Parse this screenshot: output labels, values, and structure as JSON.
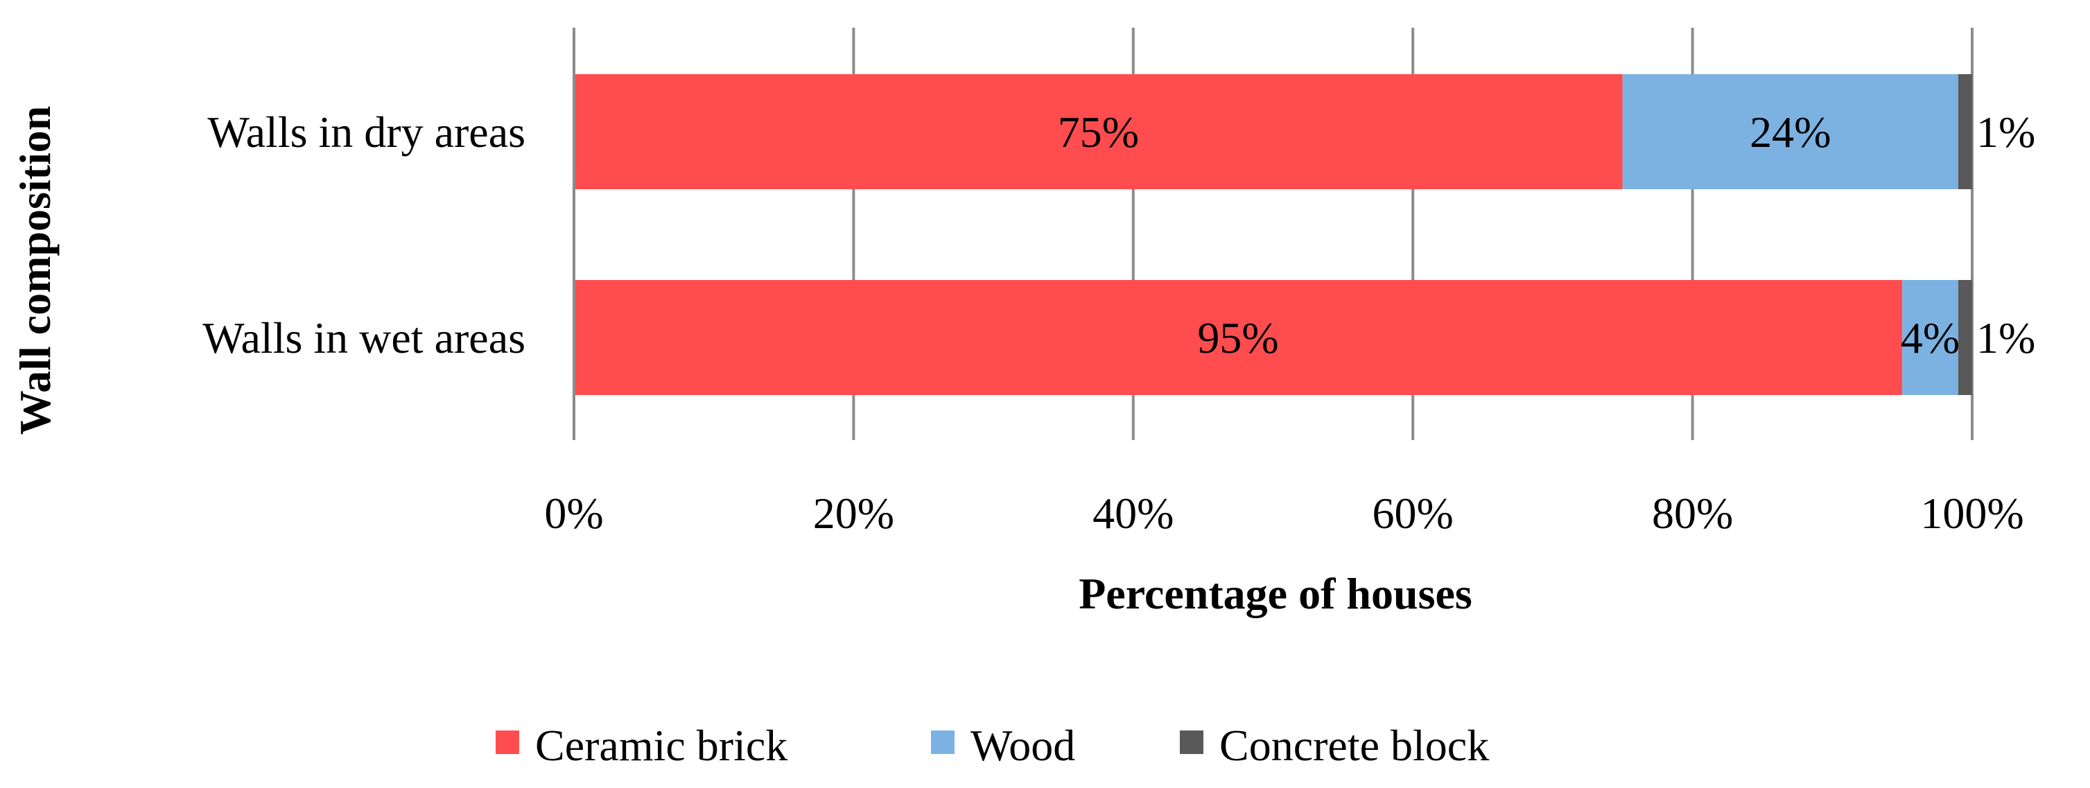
{
  "chart_data": {
    "type": "bar",
    "orientation": "horizontal",
    "stacked": true,
    "xlabel": "Percentage of houses",
    "ylabel": "Wall composition",
    "categories": [
      "Walls in dry areas",
      "Walls in wet areas"
    ],
    "series": [
      {
        "name": "Ceramic brick",
        "values": [
          75,
          95
        ],
        "labels": [
          "75%",
          "95%"
        ],
        "color": "#ff4d4f"
      },
      {
        "name": "Wood",
        "values": [
          24,
          4
        ],
        "labels": [
          "24%",
          "4%"
        ],
        "color": "#7cb2e2"
      },
      {
        "name": "Concrete block",
        "values": [
          1,
          1
        ],
        "labels": [
          "1%",
          "1%"
        ],
        "color": "#595959"
      }
    ],
    "xlim": [
      0,
      100
    ],
    "xticks": [
      0,
      20,
      40,
      60,
      80,
      100
    ],
    "xtick_labels": [
      "0%",
      "20%",
      "40%",
      "60%",
      "80%",
      "100%"
    ],
    "grid": true,
    "legend_position": "bottom"
  }
}
